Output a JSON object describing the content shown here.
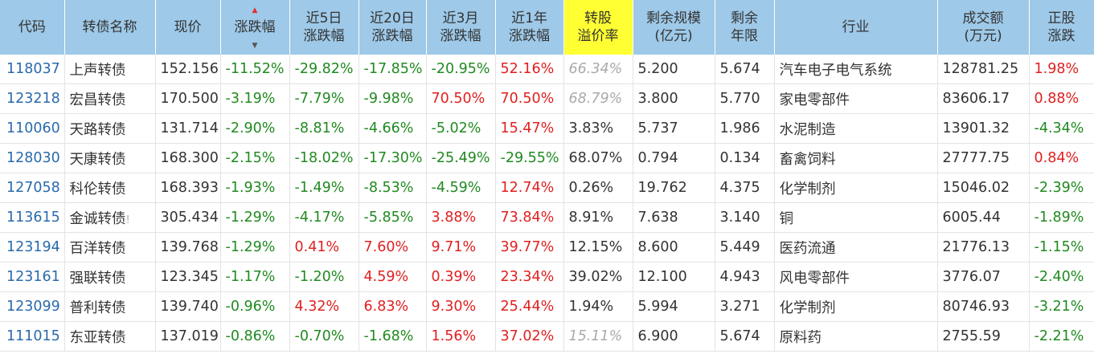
{
  "headers": {
    "code": "代码",
    "name": "转债名称",
    "price": "现价",
    "change": "涨跌幅",
    "chg5d": [
      "近5日",
      "涨跌幅"
    ],
    "chg20d": [
      "近20日",
      "涨跌幅"
    ],
    "chg3m": [
      "近3月",
      "涨跌幅"
    ],
    "chg1y": [
      "近1年",
      "涨跌幅"
    ],
    "premium": [
      "转股",
      "溢价率"
    ],
    "scale": [
      "剩余规模",
      "(亿元)"
    ],
    "years": [
      "剩余",
      "年限"
    ],
    "industry": "行业",
    "volume": [
      "成交额",
      "(万元)"
    ],
    "stock_chg": [
      "正股",
      "涨跌"
    ]
  },
  "sort_icon": "sort-desc-arrows",
  "colors": {
    "header_bg": "#9ec9e8",
    "highlight": "#ffff33",
    "up": "#e02020",
    "down": "#208a20",
    "code": "#2a6aab"
  },
  "rows": [
    {
      "code": "118037",
      "name": "上声转债",
      "price": "152.156",
      "change": "-11.52%",
      "chg5d": "-29.82%",
      "chg20d": "-17.85%",
      "chg3m": "-20.95%",
      "chg1y": "52.16%",
      "premium": "66.34%",
      "scale": "5.200",
      "years": "5.674",
      "industry": "汽车电子电气系统",
      "volume": "128781.25",
      "stock_chg": "1.98%"
    },
    {
      "code": "123218",
      "name": "宏昌转债",
      "price": "170.500",
      "change": "-3.19%",
      "chg5d": "-7.79%",
      "chg20d": "-9.98%",
      "chg3m": "70.50%",
      "chg1y": "70.50%",
      "premium": "68.79%",
      "scale": "3.800",
      "years": "5.770",
      "industry": "家电零部件",
      "volume": "83606.17",
      "stock_chg": "0.88%"
    },
    {
      "code": "110060",
      "name": "天路转债",
      "price": "131.714",
      "change": "-2.90%",
      "chg5d": "-8.81%",
      "chg20d": "-4.66%",
      "chg3m": "-5.02%",
      "chg1y": "15.47%",
      "premium": "3.83%",
      "scale": "5.737",
      "years": "1.986",
      "industry": "水泥制造",
      "volume": "13901.32",
      "stock_chg": "-4.34%"
    },
    {
      "code": "128030",
      "name": "天康转债",
      "price": "168.300",
      "change": "-2.15%",
      "chg5d": "-18.02%",
      "chg20d": "-17.30%",
      "chg3m": "-25.49%",
      "chg1y": "-29.55%",
      "premium": "68.07%",
      "scale": "0.794",
      "years": "0.134",
      "industry": "畜禽饲料",
      "volume": "27777.75",
      "stock_chg": "0.84%"
    },
    {
      "code": "127058",
      "name": "科伦转债",
      "price": "168.393",
      "change": "-1.93%",
      "chg5d": "-1.49%",
      "chg20d": "-8.53%",
      "chg3m": "-4.59%",
      "chg1y": "12.74%",
      "premium": "0.26%",
      "scale": "19.762",
      "years": "4.375",
      "industry": "化学制剂",
      "volume": "15046.02",
      "stock_chg": "-2.39%"
    },
    {
      "code": "113615",
      "name": "金诚转债",
      "name_flag": "!",
      "price": "305.434",
      "change": "-1.29%",
      "chg5d": "-4.17%",
      "chg20d": "-5.85%",
      "chg3m": "3.88%",
      "chg1y": "73.84%",
      "premium": "8.91%",
      "scale": "7.638",
      "years": "3.140",
      "industry": "铜",
      "volume": "6005.44",
      "stock_chg": "-1.89%"
    },
    {
      "code": "123194",
      "name": "百洋转债",
      "price": "139.768",
      "change": "-1.29%",
      "chg5d": "0.41%",
      "chg20d": "7.60%",
      "chg3m": "9.71%",
      "chg1y": "39.77%",
      "premium": "12.15%",
      "scale": "8.600",
      "years": "5.449",
      "industry": "医药流通",
      "volume": "21776.13",
      "stock_chg": "-1.15%"
    },
    {
      "code": "123161",
      "name": "强联转债",
      "price": "123.345",
      "change": "-1.17%",
      "chg5d": "-1.20%",
      "chg20d": "4.59%",
      "chg3m": "0.39%",
      "chg1y": "23.34%",
      "premium": "39.02%",
      "scale": "12.100",
      "years": "4.943",
      "industry": "风电零部件",
      "volume": "3776.07",
      "stock_chg": "-2.40%"
    },
    {
      "code": "123099",
      "name": "普利转债",
      "price": "139.740",
      "change": "-0.96%",
      "chg5d": "4.32%",
      "chg20d": "6.83%",
      "chg3m": "9.30%",
      "chg1y": "25.44%",
      "premium": "1.94%",
      "scale": "5.994",
      "years": "3.271",
      "industry": "化学制剂",
      "volume": "80746.93",
      "stock_chg": "-3.21%"
    },
    {
      "code": "111015",
      "name": "东亚转债",
      "price": "137.019",
      "change": "-0.86%",
      "chg5d": "-0.70%",
      "chg20d": "-1.68%",
      "chg3m": "1.56%",
      "chg1y": "37.02%",
      "premium": "15.11%",
      "scale": "6.900",
      "years": "5.674",
      "industry": "原料药",
      "volume": "2755.59",
      "stock_chg": "-2.21%"
    }
  ]
}
